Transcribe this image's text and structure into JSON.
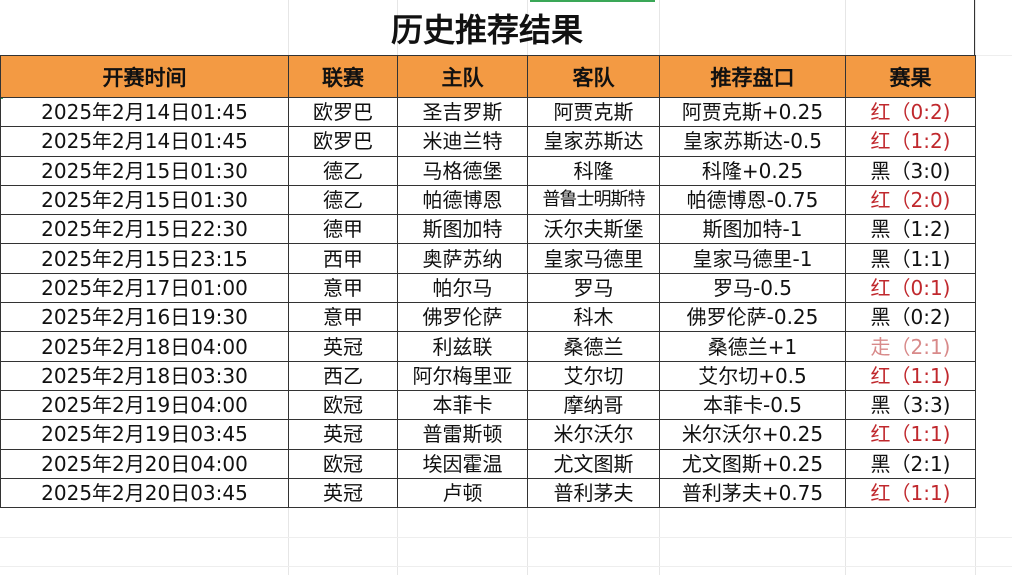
{
  "title": "历史推荐结果",
  "headers": [
    "开赛时间",
    "联赛",
    "主队",
    "客队",
    "推荐盘口",
    "赛果"
  ],
  "colors": {
    "header_bg": "#f39a43",
    "win": "#c0282d",
    "push": "#d88a8a",
    "loss": "#111111"
  },
  "rows": [
    {
      "time": "2025年2月14日01:45",
      "league": "欧罗巴",
      "home": "圣吉罗斯",
      "away": "阿贾克斯",
      "pick": "阿贾克斯+0.25",
      "result": "红（0:2)",
      "status": "red"
    },
    {
      "time": "2025年2月14日01:45",
      "league": "欧罗巴",
      "home": "米迪兰特",
      "away": "皇家苏斯达",
      "pick": "皇家苏斯达-0.5",
      "result": "红（1:2)",
      "status": "red"
    },
    {
      "time": "2025年2月15日01:30",
      "league": "德乙",
      "home": "马格德堡",
      "away": "科隆",
      "pick": "科隆+0.25",
      "result": "黑（3:0)",
      "status": "black"
    },
    {
      "time": "2025年2月15日01:30",
      "league": "德乙",
      "home": "帕德博恩",
      "away": "普鲁士明斯特",
      "pick": "帕德博恩-0.75",
      "result": "红（2:0)",
      "status": "red"
    },
    {
      "time": "2025年2月15日22:30",
      "league": "德甲",
      "home": "斯图加特",
      "away": "沃尔夫斯堡",
      "pick": "斯图加特-1",
      "result": "黑（1:2)",
      "status": "black"
    },
    {
      "time": "2025年2月15日23:15",
      "league": "西甲",
      "home": "奥萨苏纳",
      "away": "皇家马德里",
      "pick": "皇家马德里-1",
      "result": "黑（1:1)",
      "status": "black"
    },
    {
      "time": "2025年2月17日01:00",
      "league": "意甲",
      "home": "帕尔马",
      "away": "罗马",
      "pick": "罗马-0.5",
      "result": "红（0:1)",
      "status": "red"
    },
    {
      "time": "2025年2月16日19:30",
      "league": "意甲",
      "home": "佛罗伦萨",
      "away": "科木",
      "pick": "佛罗伦萨-0.25",
      "result": "黑（0:2)",
      "status": "black"
    },
    {
      "time": "2025年2月18日04:00",
      "league": "英冠",
      "home": "利兹联",
      "away": "桑德兰",
      "pick": "桑德兰+1",
      "result": "走（2:1)",
      "status": "push"
    },
    {
      "time": "2025年2月18日03:30",
      "league": "西乙",
      "home": "阿尔梅里亚",
      "away": "艾尔切",
      "pick": "艾尔切+0.5",
      "result": "红（1:1)",
      "status": "red"
    },
    {
      "time": "2025年2月19日04:00",
      "league": "欧冠",
      "home": "本菲卡",
      "away": "摩纳哥",
      "pick": "本菲卡-0.5",
      "result": "黑（3:3)",
      "status": "black"
    },
    {
      "time": "2025年2月19日03:45",
      "league": "英冠",
      "home": "普雷斯顿",
      "away": "米尔沃尔",
      "pick": "米尔沃尔+0.25",
      "result": "红（1:1)",
      "status": "red"
    },
    {
      "time": "2025年2月20日04:00",
      "league": "欧冠",
      "home": "埃因霍温",
      "away": "尤文图斯",
      "pick": "尤文图斯+0.25",
      "result": "黑（2:1)",
      "status": "black"
    },
    {
      "time": "2025年2月20日03:45",
      "league": "英冠",
      "home": "卢顿",
      "away": "普利茅夫",
      "pick": "普利茅夫+0.75",
      "result": "红（1:1)",
      "status": "red"
    }
  ]
}
